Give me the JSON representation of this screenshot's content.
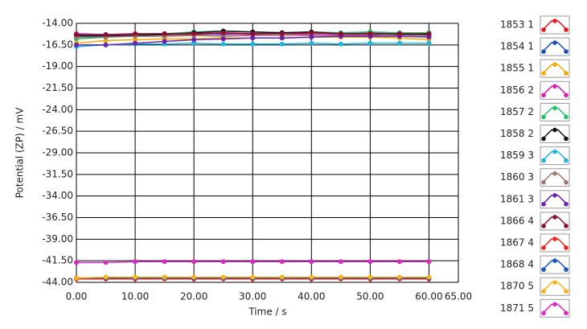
{
  "chart_data": {
    "type": "line",
    "y_label": "Potential (ZP) / mV",
    "x_label": "Time / s",
    "x": [
      0,
      5,
      10,
      15,
      20,
      25,
      30,
      35,
      40,
      45,
      50,
      55,
      60
    ],
    "xlim": [
      0,
      65
    ],
    "xticks": [
      {
        "value": 0,
        "label": "0.00"
      },
      {
        "value": 10,
        "label": "10.00"
      },
      {
        "value": 20,
        "label": "20.00"
      },
      {
        "value": 30,
        "label": "30.00"
      },
      {
        "value": 40,
        "label": "40.00"
      },
      {
        "value": 50,
        "label": "50.00"
      },
      {
        "value": 60,
        "label": "60.00"
      },
      {
        "value": 65,
        "label": "65.00"
      }
    ],
    "ylim": [
      -44,
      -14
    ],
    "yticks": [
      {
        "value": -14,
        "label": "-14.00"
      },
      {
        "value": -16.5,
        "label": "-16.50"
      },
      {
        "value": -19,
        "label": "-19.00"
      },
      {
        "value": -21.5,
        "label": "-21.50"
      },
      {
        "value": -24,
        "label": "-24.00"
      },
      {
        "value": -26.5,
        "label": "-26.50"
      },
      {
        "value": -29,
        "label": "-29.00"
      },
      {
        "value": -31.5,
        "label": "-31.50"
      },
      {
        "value": -34,
        "label": "-34.00"
      },
      {
        "value": -36.5,
        "label": "-36.50"
      },
      {
        "value": -39,
        "label": "-39.00"
      },
      {
        "value": -41.5,
        "label": "-41.50"
      },
      {
        "value": -44,
        "label": "-44.00"
      }
    ],
    "grid": true,
    "legend": "right",
    "series": [
      {
        "name": "1853 1",
        "color": "#e8131b",
        "values": [
          -15.6,
          -15.5,
          -15.4,
          -15.3,
          -15.3,
          -15.2,
          -15.2,
          -15.1,
          -15.1,
          -15.2,
          -15.1,
          -15.2,
          -15.3
        ]
      },
      {
        "name": "1854 1",
        "color": "#1a4fb5",
        "values": [
          -15.4,
          -15.4,
          -15.3,
          -15.3,
          -15.2,
          -15.3,
          -15.2,
          -15.2,
          -15.1,
          -15.2,
          -15.0,
          -15.2,
          -15.3
        ]
      },
      {
        "name": "1855 1",
        "color": "#f5a800",
        "values": [
          -16.3,
          -16.0,
          -15.9,
          -15.8,
          -15.8,
          -15.7,
          -15.7,
          -15.7,
          -15.6,
          -15.6,
          -15.6,
          -15.7,
          -15.9
        ]
      },
      {
        "name": "1856 2",
        "color": "#d61fb0",
        "values": [
          -15.2,
          -15.3,
          -15.3,
          -15.2,
          -15.2,
          -15.2,
          -15.3,
          -15.2,
          -15.3,
          -15.3,
          -15.3,
          -15.2,
          -15.2
        ]
      },
      {
        "name": "1857 2",
        "color": "#22c46a",
        "values": [
          -15.8,
          -15.6,
          -15.4,
          -15.2,
          -15.0,
          -14.9,
          -15.0,
          -15.1,
          -15.0,
          -15.1,
          -15.0,
          -15.1,
          -15.1
        ]
      },
      {
        "name": "1858 2",
        "color": "#111111",
        "values": [
          -15.5,
          -15.5,
          -15.4,
          -15.3,
          -15.1,
          -14.9,
          -15.0,
          -15.1,
          -15.0,
          -15.2,
          -15.2,
          -15.3,
          -15.3
        ]
      },
      {
        "name": "1859 3",
        "color": "#1eb4dc",
        "values": [
          -16.7,
          -16.5,
          -16.4,
          -16.4,
          -16.3,
          -16.4,
          -16.4,
          -16.4,
          -16.3,
          -16.4,
          -16.3,
          -16.3,
          -16.3
        ]
      },
      {
        "name": "1860 3",
        "color": "#9c7a6e",
        "values": [
          -15.6,
          -15.6,
          -15.5,
          -15.5,
          -15.4,
          -15.5,
          -15.4,
          -15.4,
          -15.4,
          -15.4,
          -15.4,
          -15.5,
          -15.5
        ]
      },
      {
        "name": "1861 3",
        "color": "#6a22b0",
        "values": [
          -16.5,
          -16.5,
          -16.3,
          -16.1,
          -15.9,
          -15.8,
          -15.7,
          -15.7,
          -15.6,
          -15.5,
          -15.5,
          -15.5,
          -15.6
        ]
      },
      {
        "name": "1866 4",
        "color": "#8e1030",
        "values": [
          -15.3,
          -15.3,
          -15.2,
          -15.2,
          -15.2,
          -15.1,
          -15.2,
          -15.2,
          -15.1,
          -15.2,
          -15.2,
          -15.2,
          -15.2
        ]
      },
      {
        "name": "1867 4",
        "color": "#f0221a",
        "values": [
          -43.6,
          -43.6,
          -43.6,
          -43.6,
          -43.6,
          -43.6,
          -43.6,
          -43.6,
          -43.6,
          -43.6,
          -43.6,
          -43.6,
          -43.6
        ]
      },
      {
        "name": "1868 4",
        "color": "#1656c0",
        "values": [
          -43.5,
          -43.5,
          -43.5,
          -43.5,
          -43.5,
          -43.5,
          -43.5,
          -43.5,
          -43.5,
          -43.5,
          -43.5,
          -43.5,
          -43.5
        ]
      },
      {
        "name": "1870 5",
        "color": "#f7b21a",
        "values": [
          -43.5,
          -43.4,
          -43.4,
          -43.4,
          -43.4,
          -43.4,
          -43.4,
          -43.4,
          -43.4,
          -43.4,
          -43.4,
          -43.4,
          -43.4
        ]
      },
      {
        "name": "1871 5",
        "color": "#d82ac0",
        "values": [
          -41.7,
          -41.7,
          -41.6,
          -41.6,
          -41.6,
          -41.6,
          -41.6,
          -41.6,
          -41.6,
          -41.6,
          -41.6,
          -41.6,
          -41.6
        ]
      }
    ]
  }
}
